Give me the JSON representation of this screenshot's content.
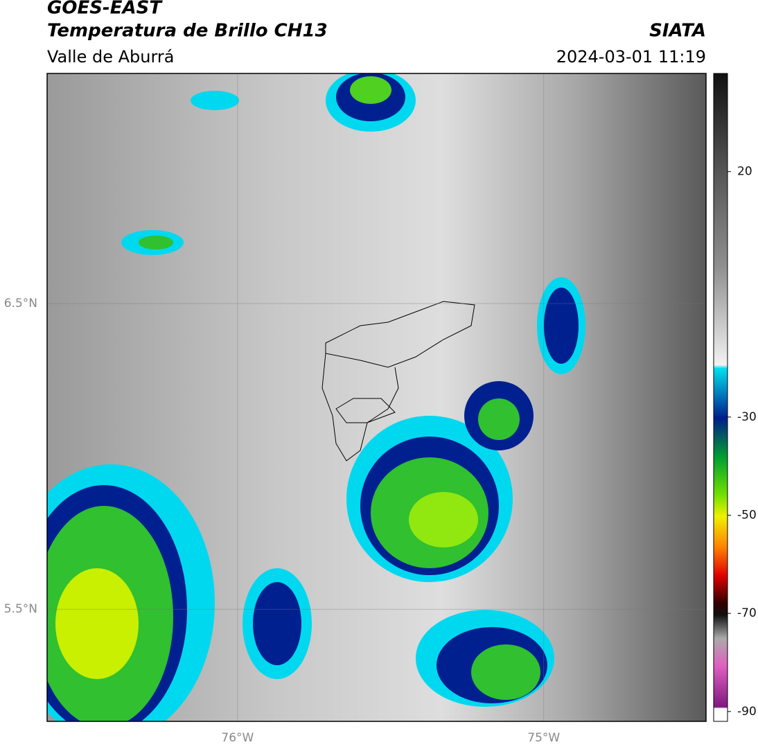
{
  "header": {
    "title": "GOES-EAST",
    "subtitle": "Temperatura de Brillo CH13",
    "region": "Valle de Aburrá",
    "source": "SIATA",
    "datetime": "2024-03-01 11:19"
  },
  "map": {
    "xlim": [
      -76.622,
      -74.47
    ],
    "ylim": [
      5.133,
      7.253
    ],
    "xticks": [
      {
        "value": -76,
        "label": "76°W"
      },
      {
        "value": -75,
        "label": "75°W"
      }
    ],
    "yticks": [
      {
        "value": 5.5,
        "label": "5.5°N"
      },
      {
        "value": 6.5,
        "label": "6.5°N"
      }
    ]
  },
  "colorbar": {
    "lim": [
      -92,
      40
    ],
    "ticks": [
      20,
      -30,
      -50,
      -70,
      -90
    ]
  }
}
